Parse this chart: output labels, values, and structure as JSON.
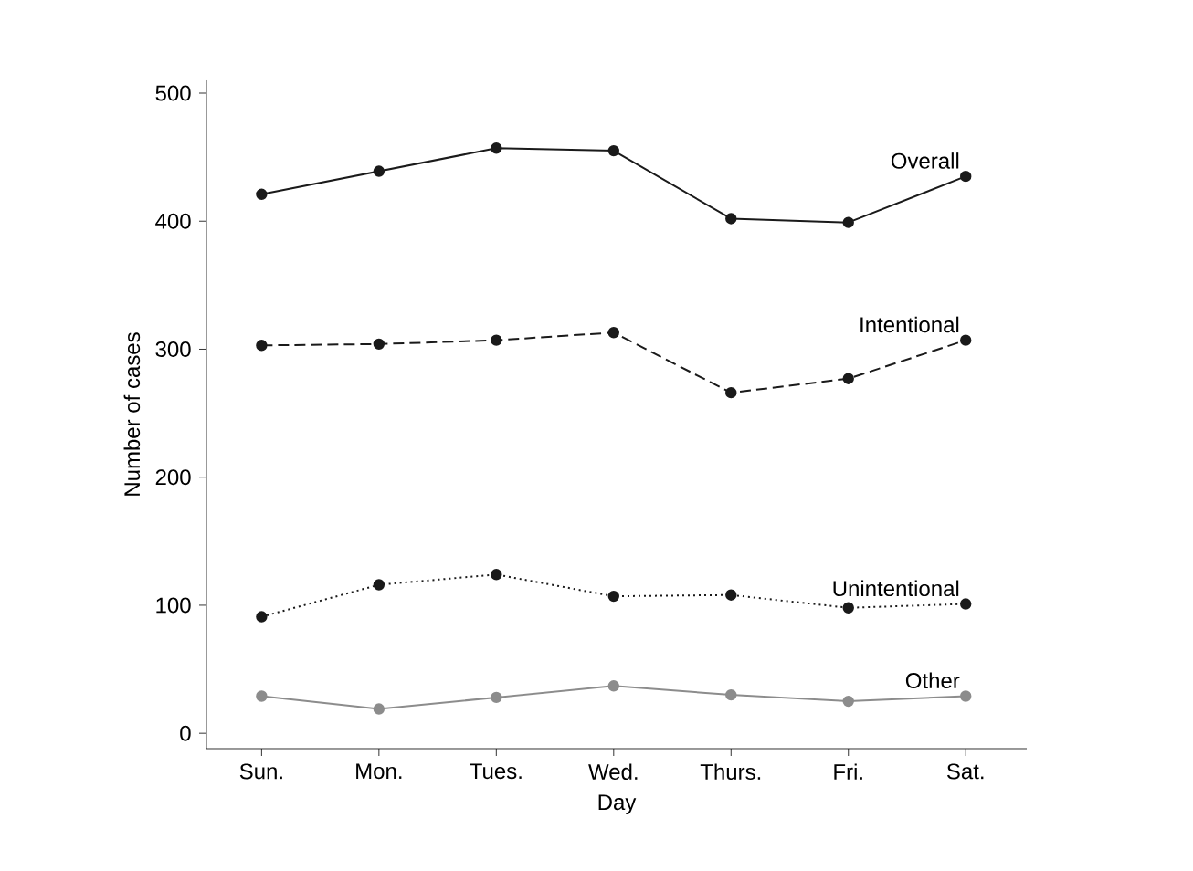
{
  "chart_data": {
    "type": "line",
    "xlabel": "Day",
    "ylabel": "Number of cases",
    "categories": [
      "Sun.",
      "Mon.",
      "Tues.",
      "Wed.",
      "Thurs.",
      "Fri.",
      "Sat."
    ],
    "series": [
      {
        "name": "Overall",
        "color": "#1a1a1a",
        "line_style": "solid",
        "values": [
          421,
          439,
          457,
          455,
          402,
          399,
          435
        ]
      },
      {
        "name": "Intentional",
        "color": "#1a1a1a",
        "line_style": "dashed",
        "values": [
          303,
          304,
          307,
          313,
          266,
          277,
          307
        ]
      },
      {
        "name": "Unintentional",
        "color": "#1a1a1a",
        "line_style": "dotted",
        "values": [
          91,
          116,
          124,
          107,
          108,
          98,
          101
        ]
      },
      {
        "name": "Other",
        "color": "#8c8c8c",
        "line_style": "solid",
        "values": [
          29,
          19,
          28,
          37,
          30,
          25,
          29
        ]
      }
    ],
    "ylim": [
      -12,
      510
    ],
    "yticks": [
      0,
      100,
      200,
      300,
      400,
      500
    ],
    "marker": "circle",
    "legend": false,
    "grid": false
  }
}
